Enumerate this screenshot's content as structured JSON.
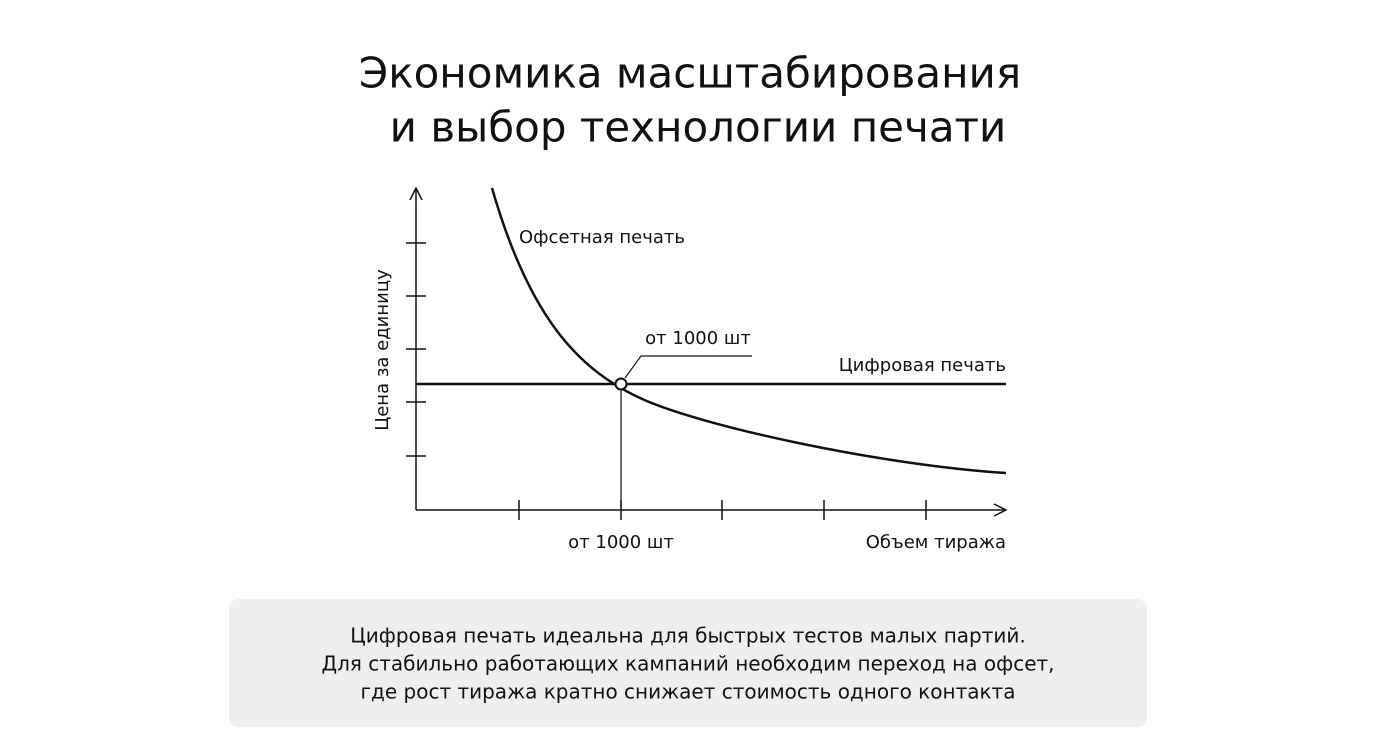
{
  "title": [
    "Экономика масштабирования",
    "и выбор технологии печати"
  ],
  "chart": {
    "y_label": "Цена за единицу",
    "x_label": "Объем тиража",
    "offset_label": "Офсетная печать",
    "digital_label": "Цифровая печать",
    "point_label": "от 1000 шт",
    "x_marker_label": "от 1000 шт"
  },
  "note": {
    "lines": [
      "Цифровая печать идеальна для быстрых тестов малых партий.",
      "Для стабильно работающих кампаний необходим переход на офсет,",
      "где рост тиража кратно снижает стоимость одного контакта"
    ]
  }
}
